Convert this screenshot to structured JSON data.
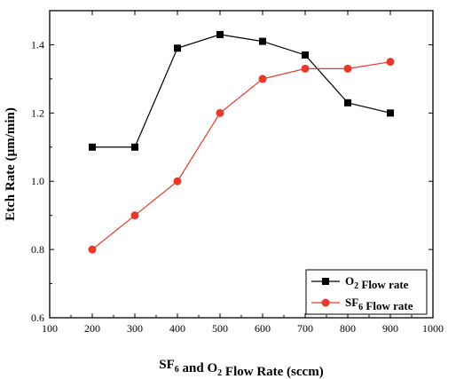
{
  "chart_data": {
    "type": "line",
    "xlabel": "SF6 and O2 Flow Rate (sccm)",
    "ylabel": "Etch Rate (µm/min)",
    "xlim": [
      100,
      1000
    ],
    "ylim": [
      0.6,
      1.5
    ],
    "x_ticks": [
      "100",
      "200",
      "300",
      "400",
      "500",
      "600",
      "700",
      "800",
      "900",
      "1000"
    ],
    "y_ticks": [
      "0.6",
      "0.8",
      "1.0",
      "1.2",
      "1.4"
    ],
    "grid": false,
    "legend_position": "bottom-right",
    "x": [
      200,
      300,
      400,
      500,
      600,
      700,
      800,
      900
    ],
    "series": [
      {
        "name": "O2 Flow rate",
        "marker": "square",
        "color": "#000000",
        "values": [
          1.1,
          1.1,
          1.39,
          1.43,
          1.41,
          1.37,
          1.23,
          1.2
        ]
      },
      {
        "name": "SF6 Flow rate",
        "marker": "circle",
        "color": "#e8392a",
        "values": [
          0.8,
          0.9,
          1.0,
          1.2,
          1.3,
          1.33,
          1.33,
          1.35
        ]
      }
    ]
  }
}
